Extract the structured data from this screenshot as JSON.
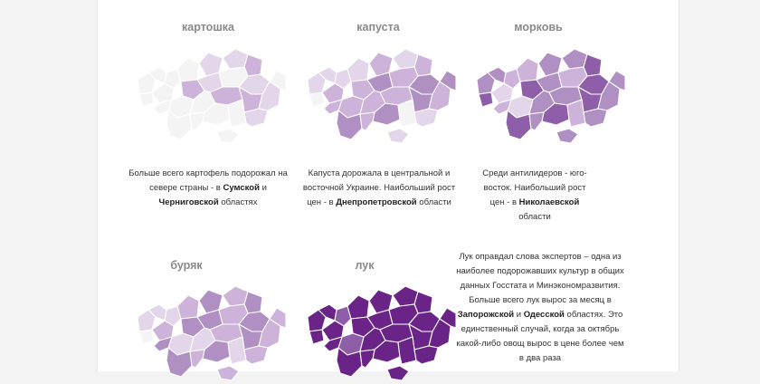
{
  "palette": {
    "empty": "#f4f4f4",
    "level_1": "#e4d6ea",
    "level_2": "#cdb2d9",
    "level_3": "#b08fc3",
    "level_4": "#8e5fa8",
    "level_5": "#6a2487",
    "outline": "#ffffff",
    "text": "#333333",
    "title": "#8a8a8a"
  },
  "panels": [
    {
      "title": "картошка",
      "caption": {
        "parts": [
          {
            "text": "Больше всего картофель подорожал на севере страны - в ",
            "bold": false
          },
          {
            "text": "Сумской",
            "bold": true
          },
          {
            "text": " и ",
            "bold": false
          },
          {
            "text": "Черниговской",
            "bold": true
          },
          {
            "text": " областях",
            "bold": false
          }
        ]
      },
      "region_levels": [
        0,
        0,
        0,
        0,
        0,
        0,
        1,
        1,
        2,
        2,
        1,
        0,
        0,
        0,
        1,
        2,
        2,
        1,
        0,
        0,
        0,
        1,
        0,
        0,
        0,
        0
      ]
    },
    {
      "title": "капуста",
      "caption": {
        "parts": [
          {
            "text": "Капуста дорожала в центральной и восточной Украине. Наибольший рост цен - в ",
            "bold": false
          },
          {
            "text": "Днепропетровской",
            "bold": true
          },
          {
            "text": " области",
            "bold": false
          }
        ]
      },
      "region_levels": [
        1,
        0,
        1,
        1,
        2,
        1,
        2,
        1,
        2,
        2,
        3,
        2,
        2,
        2,
        3,
        2,
        3,
        2,
        3,
        3,
        0,
        1,
        3,
        2,
        1,
        2
      ]
    },
    {
      "title": "морковь",
      "caption": {
        "parts": [
          {
            "text": "Среди антилидеров - юго-восток. Наибольший рост цен - в ",
            "bold": false
          },
          {
            "text": "Николаевской",
            "bold": true
          },
          {
            "text": " области",
            "bold": false
          }
        ]
      },
      "region_levels": [
        3,
        4,
        3,
        2,
        1,
        2,
        3,
        3,
        4,
        4,
        3,
        2,
        1,
        3,
        4,
        3,
        4,
        3,
        3,
        4,
        2,
        3,
        4,
        3,
        3,
        2
      ]
    },
    {
      "title": "буряк",
      "caption": null,
      "region_levels": [
        1,
        0,
        1,
        1,
        2,
        2,
        3,
        2,
        3,
        3,
        3,
        2,
        1,
        1,
        3,
        2,
        3,
        2,
        2,
        3,
        1,
        2,
        3,
        2,
        2,
        3
      ]
    },
    {
      "title": "лук",
      "caption": null,
      "region_levels": [
        5,
        5,
        5,
        4,
        5,
        5,
        5,
        5,
        5,
        5,
        5,
        5,
        4,
        5,
        5,
        5,
        5,
        5,
        5,
        5,
        5,
        5,
        5,
        5,
        5,
        5
      ]
    }
  ],
  "side_text": {
    "parts": [
      {
        "text": "Лук оправдал слова экспертов – одна из наиболее подорожавших культур в общих данных Госстата и Минэкономразвития. Больше всего лук вырос за месяц в ",
        "bold": false
      },
      {
        "text": "Запорожской",
        "bold": true
      },
      {
        "text": " и ",
        "bold": false
      },
      {
        "text": "Одесской",
        "bold": true
      },
      {
        "text": " областях. Это единственный случай, когда за октябрь какой-либо овощ вырос в цене более чем в два раза",
        "bold": false
      }
    ]
  }
}
